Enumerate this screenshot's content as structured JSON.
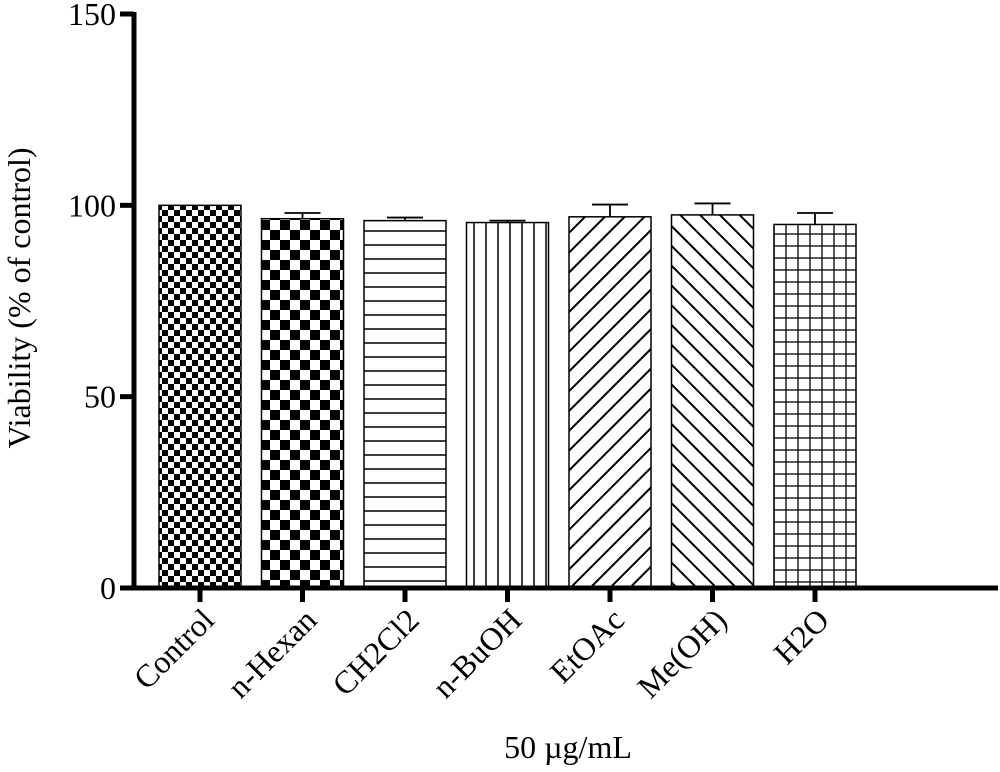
{
  "chart_data": {
    "type": "bar",
    "title": "",
    "xlabel": "50 µg/mL",
    "ylabel": "Viability (% of control)",
    "ylim": [
      0,
      150
    ],
    "yticks": [
      0,
      50,
      100,
      150
    ],
    "grid": false,
    "categories": [
      "Control",
      "n-Hexan",
      "CH2Cl2",
      "n-BuOH",
      "EtOAc",
      "Me(OH)",
      "H2O"
    ],
    "values": [
      100,
      96.5,
      96,
      95.5,
      97,
      97.5,
      95
    ],
    "errors": [
      0,
      1.5,
      0.8,
      0.5,
      3.2,
      3.0,
      3.0
    ],
    "patterns": [
      "fine-checker",
      "coarse-checker",
      "horizontal-lines",
      "vertical-lines",
      "diagonal-up",
      "diagonal-down",
      "grid"
    ]
  }
}
